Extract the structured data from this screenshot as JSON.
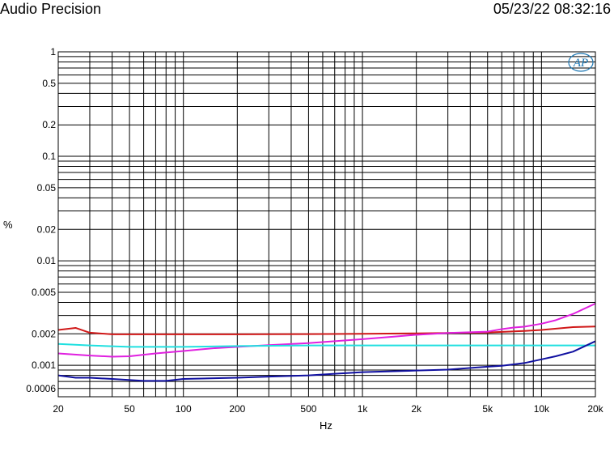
{
  "header": {
    "title": "Audio Precision",
    "timestamp": "05/23/22 08:32:16"
  },
  "logo": {
    "text": "AP"
  },
  "chart_data": {
    "type": "line",
    "xlabel": "Hz",
    "ylabel": "%",
    "xscale": "log",
    "yscale": "log",
    "xlim": [
      20,
      20000
    ],
    "ylim": [
      0.0005,
      1
    ],
    "grid": true,
    "legend": "none",
    "x_ticks": [
      {
        "value": 20,
        "label": "20"
      },
      {
        "value": 50,
        "label": "50"
      },
      {
        "value": 100,
        "label": "100"
      },
      {
        "value": 200,
        "label": "200"
      },
      {
        "value": 500,
        "label": "500"
      },
      {
        "value": 1000,
        "label": "1k"
      },
      {
        "value": 2000,
        "label": "2k"
      },
      {
        "value": 5000,
        "label": "5k"
      },
      {
        "value": 10000,
        "label": "10k"
      },
      {
        "value": 20000,
        "label": "20k"
      }
    ],
    "y_ticks": [
      {
        "value": 1,
        "label": "1"
      },
      {
        "value": 0.5,
        "label": "0.5"
      },
      {
        "value": 0.2,
        "label": "0.2"
      },
      {
        "value": 0.1,
        "label": "0.1"
      },
      {
        "value": 0.05,
        "label": "0.05"
      },
      {
        "value": 0.02,
        "label": "0.02"
      },
      {
        "value": 0.01,
        "label": "0.01"
      },
      {
        "value": 0.005,
        "label": "0.005"
      },
      {
        "value": 0.002,
        "label": "0.002"
      },
      {
        "value": 0.001,
        "label": "0.001"
      },
      {
        "value": 0.0006,
        "label": "0.0006"
      }
    ],
    "series": [
      {
        "color": "#d01818",
        "x": [
          20,
          25,
          30,
          40,
          60,
          100,
          200,
          500,
          1000,
          2000,
          5000,
          8000,
          10000,
          15000,
          20000
        ],
        "y": [
          0.00218,
          0.00228,
          0.00205,
          0.00198,
          0.00198,
          0.00198,
          0.00198,
          0.00199,
          0.002,
          0.00202,
          0.00206,
          0.00213,
          0.00218,
          0.00232,
          0.00235
        ]
      },
      {
        "color": "#e020e0",
        "x": [
          20,
          30,
          40,
          50,
          70,
          100,
          150,
          200,
          300,
          500,
          700,
          1000,
          1500,
          2000,
          3000,
          5000,
          6000,
          7000,
          8000,
          10000,
          12000,
          15000,
          20000
        ],
        "y": [
          0.0013,
          0.00124,
          0.00121,
          0.00122,
          0.0013,
          0.00137,
          0.00146,
          0.0015,
          0.00156,
          0.00163,
          0.0017,
          0.00178,
          0.00188,
          0.00196,
          0.00204,
          0.0021,
          0.00222,
          0.0023,
          0.00234,
          0.0025,
          0.0027,
          0.0031,
          0.0039
        ]
      },
      {
        "color": "#20e0e0",
        "x": [
          20,
          30,
          50,
          100,
          200,
          500,
          1000,
          2000,
          5000,
          10000,
          20000
        ],
        "y": [
          0.0016,
          0.00155,
          0.0015,
          0.0015,
          0.00153,
          0.00155,
          0.00155,
          0.00155,
          0.00155,
          0.00155,
          0.00155
        ]
      },
      {
        "color": "#1010a0",
        "x": [
          20,
          25,
          30,
          40,
          60,
          80,
          100,
          200,
          300,
          500,
          700,
          1000,
          2000,
          3000,
          5000,
          6000,
          8000,
          10000,
          12000,
          15000,
          20000
        ],
        "y": [
          0.0008,
          0.00076,
          0.00076,
          0.00074,
          0.00071,
          0.00071,
          0.00074,
          0.00076,
          0.00078,
          0.0008,
          0.00083,
          0.00086,
          0.00089,
          0.00091,
          0.00097,
          0.00099,
          0.00105,
          0.00114,
          0.00122,
          0.00135,
          0.0017
        ]
      }
    ]
  }
}
